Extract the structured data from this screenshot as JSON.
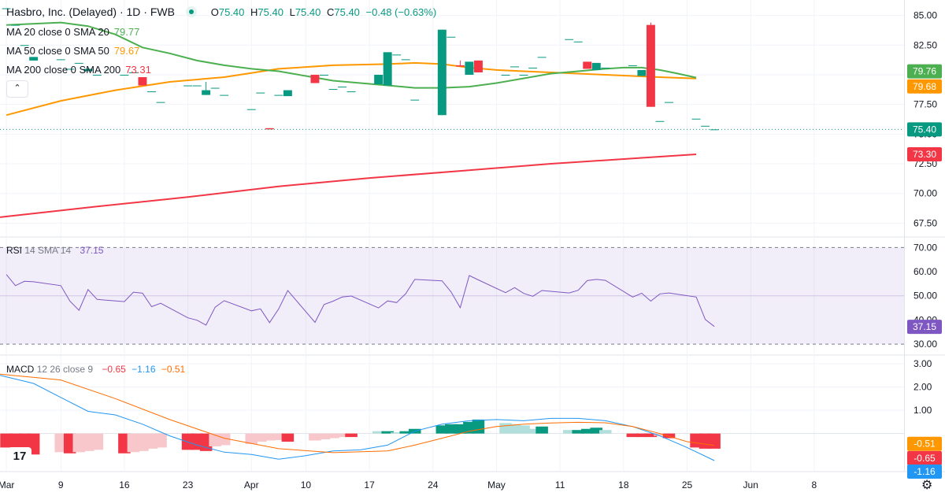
{
  "header": {
    "title": "Hasbro, Inc. (Delayed) · 1D · FWB",
    "open_label": "O",
    "open": "75.40",
    "high_label": "H",
    "high": "75.40",
    "low_label": "L",
    "low": "75.40",
    "close_label": "C",
    "close": "75.40",
    "change": "−0.48 (−0.63%)"
  },
  "indicators": {
    "ma20": {
      "label": "MA 20 close 0 SMA 20",
      "value": "79.77",
      "color": "#4caf50"
    },
    "ma50": {
      "label": "MA 50 close 0 SMA 50",
      "value": "79.67",
      "color": "#ff9800"
    },
    "ma200": {
      "label": "MA 200 close 0 SMA 200",
      "value": "73.31",
      "color": "#f23645"
    },
    "rsi": {
      "label": "RSI",
      "params": "14 SMA 14",
      "value": "37.15",
      "color": "#7e57c2"
    },
    "macd": {
      "label": "MACD",
      "params": "12 26 close 9",
      "hist": "−0.65",
      "macd": "−1.16",
      "signal": "−0.51"
    }
  },
  "chart_data": {
    "type": "candlestick",
    "price_axis": {
      "ticks": [
        "85.00",
        "82.50",
        "80.00",
        "77.50",
        "75.00",
        "72.50",
        "70.00",
        "67.50"
      ],
      "range": [
        66.4,
        86.3
      ]
    },
    "price_labels": [
      {
        "text": "79.76",
        "value": 79.76,
        "color": "#4caf50"
      },
      {
        "text": "79.68",
        "value": 79.68,
        "color": "#ff9800"
      },
      {
        "text": "75.40",
        "value": 75.4,
        "color": "#089981"
      },
      {
        "text": "73.30",
        "value": 73.3,
        "color": "#f23645"
      }
    ],
    "rsi_axis": {
      "ticks": [
        "70.00",
        "60.00",
        "50.00",
        "40.00",
        "30.00"
      ],
      "range": [
        25.8,
        73.7
      ],
      "band": [
        30,
        70
      ]
    },
    "rsi_label": {
      "text": "37.15",
      "value": 37.15
    },
    "macd_axis": {
      "ticks": [
        "3.00",
        "2.00",
        "1.00"
      ],
      "range": [
        -1.6,
        3.3
      ]
    },
    "macd_labels": [
      {
        "text": "-0.51",
        "value": -0.51,
        "color": "#ff9800"
      },
      {
        "text": "-0.65",
        "value": -0.65,
        "color": "#f23645"
      },
      {
        "text": "-1.16",
        "value": -1.16,
        "color": "#2196f3"
      }
    ],
    "x_axis": [
      "Mar",
      "9",
      "16",
      "23",
      "Apr",
      "10",
      "17",
      "24",
      "May",
      "11",
      "18",
      "25",
      "Jun",
      "8"
    ],
    "x_axis_day_index": [
      0,
      6,
      13,
      20,
      27,
      33,
      40,
      47,
      54,
      61,
      68,
      75,
      82,
      89
    ],
    "x_range_days": [
      -0.7,
      98.9
    ],
    "candle_day_index": [
      0,
      1,
      2,
      3,
      6,
      7,
      8,
      9,
      10,
      13,
      14,
      15,
      16,
      17,
      20,
      21,
      22,
      23,
      24,
      27,
      28,
      29,
      30,
      31,
      34,
      35,
      36,
      37,
      38,
      41,
      42,
      43,
      44,
      45,
      48,
      49,
      50,
      51,
      52,
      55,
      56,
      57,
      58,
      59,
      62,
      63,
      64,
      65,
      66,
      69,
      70,
      71,
      72,
      73,
      76,
      77,
      78
    ],
    "candles": [
      [
        85.6,
        85.6,
        85.6,
        85.6
      ],
      [
        84.2,
        84.2,
        84.2,
        84.2
      ],
      [
        82.5,
        82.5,
        82.5,
        82.5
      ],
      [
        81.2,
        81.5,
        81.2,
        81.5
      ],
      [
        81.3,
        81.3,
        81.3,
        81.3
      ],
      [
        80.5,
        80.5,
        80.5,
        80.5
      ],
      [
        81.0,
        81.0,
        81.0,
        81.0
      ],
      [
        80.3,
        80.5,
        80.3,
        80.5
      ],
      [
        80.0,
        80.0,
        80.0,
        80.0
      ],
      [
        80.0,
        80.0,
        80.0,
        80.0
      ],
      [
        80.2,
        80.2,
        80.2,
        80.2
      ],
      [
        79.8,
        79.8,
        79.1,
        79.1
      ],
      [
        78.6,
        78.6,
        78.6,
        78.6
      ],
      [
        77.7,
        77.7,
        77.7,
        77.7
      ],
      [
        79.1,
        79.1,
        79.1,
        79.1
      ],
      [
        79.1,
        79.1,
        79.1,
        79.1
      ],
      [
        78.3,
        79.4,
        78.3,
        78.7
      ],
      [
        78.9,
        78.9,
        78.9,
        78.9
      ],
      [
        78.3,
        78.3,
        78.3,
        78.3
      ],
      [
        77.1,
        77.1,
        77.1,
        77.1
      ],
      [
        78.5,
        78.5,
        78.5,
        78.5
      ],
      [
        75.5,
        75.5,
        75.4,
        75.4
      ],
      [
        78.3,
        78.3,
        78.3,
        78.3
      ],
      [
        78.2,
        78.7,
        78.2,
        78.7
      ],
      [
        80.0,
        80.0,
        79.3,
        79.3
      ],
      [
        80.0,
        80.0,
        80.0,
        80.0
      ],
      [
        78.8,
        78.8,
        78.8,
        78.8
      ],
      [
        79.0,
        79.0,
        79.0,
        79.0
      ],
      [
        78.6,
        78.6,
        78.6,
        78.6
      ],
      [
        79.2,
        80.0,
        79.2,
        80.0
      ],
      [
        79.1,
        81.9,
        79.1,
        81.9
      ],
      [
        81.7,
        81.7,
        81.7,
        81.7
      ],
      [
        81.3,
        81.3,
        81.3,
        81.3
      ],
      [
        77.9,
        77.9,
        77.9,
        77.9
      ],
      [
        76.6,
        83.8,
        76.6,
        83.8
      ],
      [
        83.2,
        83.2,
        83.2,
        83.2
      ],
      [
        80.8,
        81.2,
        80.7,
        80.7
      ],
      [
        80.0,
        81.1,
        80.0,
        81.1
      ],
      [
        81.2,
        81.2,
        80.2,
        80.2
      ],
      [
        80.0,
        80.0,
        80.0,
        80.0
      ],
      [
        80.7,
        80.7,
        80.7,
        80.7
      ],
      [
        80.0,
        80.0,
        80.0,
        80.0
      ],
      [
        80.6,
        80.6,
        80.6,
        80.6
      ],
      [
        81.5,
        81.5,
        81.5,
        81.5
      ],
      [
        83.0,
        83.0,
        83.0,
        83.0
      ],
      [
        82.8,
        82.8,
        82.8,
        82.8
      ],
      [
        81.1,
        81.1,
        80.5,
        80.5
      ],
      [
        80.4,
        81.0,
        80.4,
        81.0
      ],
      [
        80.6,
        80.6,
        80.6,
        80.6
      ],
      [
        80.8,
        80.8,
        80.8,
        80.8
      ],
      [
        79.9,
        80.4,
        79.9,
        80.4
      ],
      [
        84.2,
        84.4,
        77.3,
        77.3
      ],
      [
        76.1,
        76.1,
        76.1,
        76.1
      ],
      [
        77.7,
        77.7,
        77.7,
        77.7
      ],
      [
        76.3,
        76.3,
        76.3,
        76.3
      ],
      [
        75.7,
        75.7,
        75.7,
        75.7
      ],
      [
        75.4,
        75.4,
        75.4,
        75.4
      ]
    ],
    "ma20": [
      [
        0,
        84.2
      ],
      [
        6,
        84.4
      ],
      [
        9,
        84.1
      ],
      [
        12,
        83.4
      ],
      [
        15,
        82.3
      ],
      [
        18,
        81.8
      ],
      [
        21,
        81.2
      ],
      [
        24,
        80.8
      ],
      [
        27,
        80.5
      ],
      [
        30,
        80.3
      ],
      [
        33,
        79.9
      ],
      [
        36,
        79.5
      ],
      [
        39,
        79.3
      ],
      [
        42,
        79.1
      ],
      [
        45,
        78.9
      ],
      [
        48,
        78.9
      ],
      [
        51,
        79.0
      ],
      [
        54,
        79.3
      ],
      [
        57,
        79.7
      ],
      [
        60,
        80.1
      ],
      [
        63,
        80.3
      ],
      [
        66,
        80.5
      ],
      [
        68,
        80.6
      ],
      [
        70,
        80.6
      ],
      [
        72,
        80.4
      ],
      [
        74,
        80.1
      ],
      [
        76,
        79.76
      ]
    ],
    "ma50": [
      [
        0,
        76.6
      ],
      [
        6,
        77.8
      ],
      [
        12,
        78.7
      ],
      [
        18,
        79.4
      ],
      [
        24,
        79.8
      ],
      [
        30,
        80.5
      ],
      [
        36,
        80.8
      ],
      [
        42,
        80.9
      ],
      [
        45,
        81.0
      ],
      [
        48,
        80.9
      ],
      [
        51,
        80.6
      ],
      [
        54,
        80.4
      ],
      [
        57,
        80.3
      ],
      [
        60,
        80.2
      ],
      [
        63,
        80.1
      ],
      [
        66,
        80.0
      ],
      [
        69,
        79.9
      ],
      [
        72,
        79.8
      ],
      [
        76,
        79.68
      ]
    ],
    "ma200": [
      [
        -0.7,
        68.0
      ],
      [
        10,
        68.9
      ],
      [
        20,
        69.7
      ],
      [
        30,
        70.6
      ],
      [
        40,
        71.3
      ],
      [
        50,
        71.9
      ],
      [
        60,
        72.5
      ],
      [
        70,
        73.0
      ],
      [
        76,
        73.3
      ]
    ],
    "rsi": [
      [
        0,
        58.8
      ],
      [
        1,
        54.2
      ],
      [
        2,
        56.0
      ],
      [
        3,
        55.8
      ],
      [
        6,
        54.2
      ],
      [
        7,
        47.8
      ],
      [
        8,
        44.0
      ],
      [
        9,
        52.6
      ],
      [
        10,
        48.5
      ],
      [
        13,
        47.6
      ],
      [
        14,
        51.5
      ],
      [
        15,
        51.1
      ],
      [
        16,
        45.5
      ],
      [
        17,
        46.9
      ],
      [
        20,
        40.9
      ],
      [
        21,
        39.9
      ],
      [
        22,
        37.9
      ],
      [
        23,
        45.3
      ],
      [
        24,
        48.0
      ],
      [
        27,
        43.8
      ],
      [
        28,
        44.6
      ],
      [
        29,
        38.9
      ],
      [
        30,
        44.6
      ],
      [
        31,
        52.2
      ],
      [
        34,
        39.0
      ],
      [
        35,
        46.4
      ],
      [
        36,
        47.8
      ],
      [
        37,
        49.5
      ],
      [
        38,
        49.9
      ],
      [
        41,
        45.0
      ],
      [
        42,
        47.9
      ],
      [
        43,
        47.2
      ],
      [
        44,
        50.9
      ],
      [
        45,
        56.8
      ],
      [
        48,
        56.2
      ],
      [
        49,
        51.6
      ],
      [
        50,
        45.1
      ],
      [
        51,
        58.4
      ],
      [
        52,
        56.6
      ],
      [
        55,
        51.3
      ],
      [
        56,
        53.4
      ],
      [
        57,
        51.0
      ],
      [
        58,
        49.8
      ],
      [
        59,
        52.2
      ],
      [
        62,
        51.2
      ],
      [
        63,
        52.3
      ],
      [
        64,
        56.3
      ],
      [
        65,
        56.8
      ],
      [
        66,
        56.4
      ],
      [
        69,
        49.5
      ],
      [
        70,
        51.1
      ],
      [
        71,
        47.8
      ],
      [
        72,
        50.8
      ],
      [
        73,
        51.2
      ],
      [
        76,
        49.5
      ],
      [
        77,
        40.2
      ],
      [
        78,
        37.3
      ]
    ],
    "macd_line": [
      [
        -0.7,
        2.5
      ],
      [
        3,
        2.15
      ],
      [
        6,
        1.55
      ],
      [
        9,
        0.95
      ],
      [
        12,
        0.8
      ],
      [
        15,
        0.4
      ],
      [
        18,
        -0.1
      ],
      [
        21,
        -0.5
      ],
      [
        24,
        -0.8
      ],
      [
        27,
        -0.9
      ],
      [
        30,
        -1.1
      ],
      [
        33,
        -0.95
      ],
      [
        36,
        -0.75
      ],
      [
        39,
        -0.7
      ],
      [
        42,
        -0.5
      ],
      [
        45,
        0.1
      ],
      [
        48,
        0.4
      ],
      [
        51,
        0.55
      ],
      [
        54,
        0.6
      ],
      [
        57,
        0.55
      ],
      [
        60,
        0.65
      ],
      [
        63,
        0.65
      ],
      [
        66,
        0.55
      ],
      [
        69,
        0.3
      ],
      [
        72,
        -0.1
      ],
      [
        75,
        -0.6
      ],
      [
        78,
        -1.16
      ]
    ],
    "macd_signal": [
      [
        -0.7,
        2.55
      ],
      [
        6,
        2.3
      ],
      [
        12,
        1.5
      ],
      [
        18,
        0.6
      ],
      [
        24,
        -0.2
      ],
      [
        30,
        -0.65
      ],
      [
        36,
        -0.82
      ],
      [
        42,
        -0.75
      ],
      [
        45,
        -0.5
      ],
      [
        48,
        -0.2
      ],
      [
        51,
        0.1
      ],
      [
        54,
        0.3
      ],
      [
        57,
        0.4
      ],
      [
        60,
        0.45
      ],
      [
        63,
        0.48
      ],
      [
        66,
        0.46
      ],
      [
        69,
        0.3
      ],
      [
        72,
        0.0
      ],
      [
        75,
        -0.35
      ],
      [
        78,
        -0.51
      ]
    ],
    "macd_hist": [
      -0.6,
      -0.62,
      -0.8,
      -0.9,
      -0.8,
      -0.85,
      -0.8,
      -0.75,
      -0.7,
      -0.85,
      -0.8,
      -0.75,
      -0.65,
      -0.6,
      -0.7,
      -0.7,
      -0.75,
      -0.55,
      -0.5,
      -0.45,
      -0.35,
      -0.3,
      -0.28,
      -0.35,
      -0.3,
      -0.25,
      -0.2,
      -0.15,
      -0.15,
      0.1,
      0.1,
      0.05,
      0.1,
      0.2,
      0.35,
      0.4,
      0.4,
      0.5,
      0.6,
      0.45,
      0.4,
      0.35,
      0.2,
      0.3,
      0.15,
      0.15,
      0.2,
      0.25,
      0.15,
      -0.15,
      -0.15,
      -0.15,
      -0.1,
      -0.2,
      -0.6,
      -0.65,
      -0.65
    ]
  },
  "colors": {
    "up": "#089981",
    "down": "#f23645",
    "up_soft": "#b2dfdb",
    "down_soft": "#f8c7cb",
    "grid": "#f0f3fa",
    "axis_text": "#131722",
    "rsi_band": "#7e57c2",
    "macd_line": "#2196f3",
    "signal_line": "#ff6d00"
  },
  "icons": {
    "logo": "tradingview-logo",
    "settings": "gear-icon",
    "collapse": "chevron-up-icon"
  },
  "ui": {
    "collapse_glyph": "⌃",
    "logo_text": "17",
    "gear_glyph": "⚙"
  }
}
